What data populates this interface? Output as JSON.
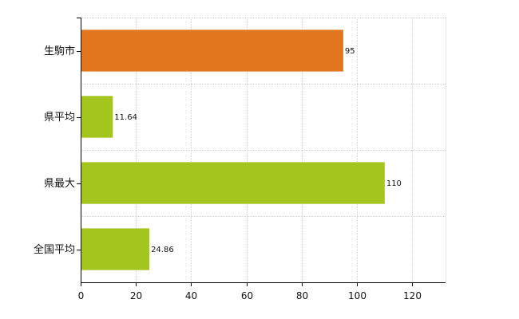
{
  "chart_data": {
    "type": "bar",
    "orientation": "horizontal",
    "categories": [
      "生駒市",
      "県平均",
      "県最大",
      "全国平均"
    ],
    "values": [
      95,
      11.64,
      110,
      24.86
    ],
    "value_labels": [
      "95",
      "11.64",
      "110",
      "24.86"
    ],
    "bar_colors": [
      "#E3771F",
      "#A4C51E",
      "#A4C51E",
      "#A4C51E"
    ],
    "xlim": [
      0,
      132
    ],
    "xticks": [
      0,
      20,
      40,
      60,
      80,
      100,
      120
    ],
    "xtick_labels": [
      "0",
      "20",
      "40",
      "60",
      "80",
      "100",
      "120"
    ],
    "grid": true,
    "title": "",
    "xlabel": "",
    "ylabel": ""
  }
}
